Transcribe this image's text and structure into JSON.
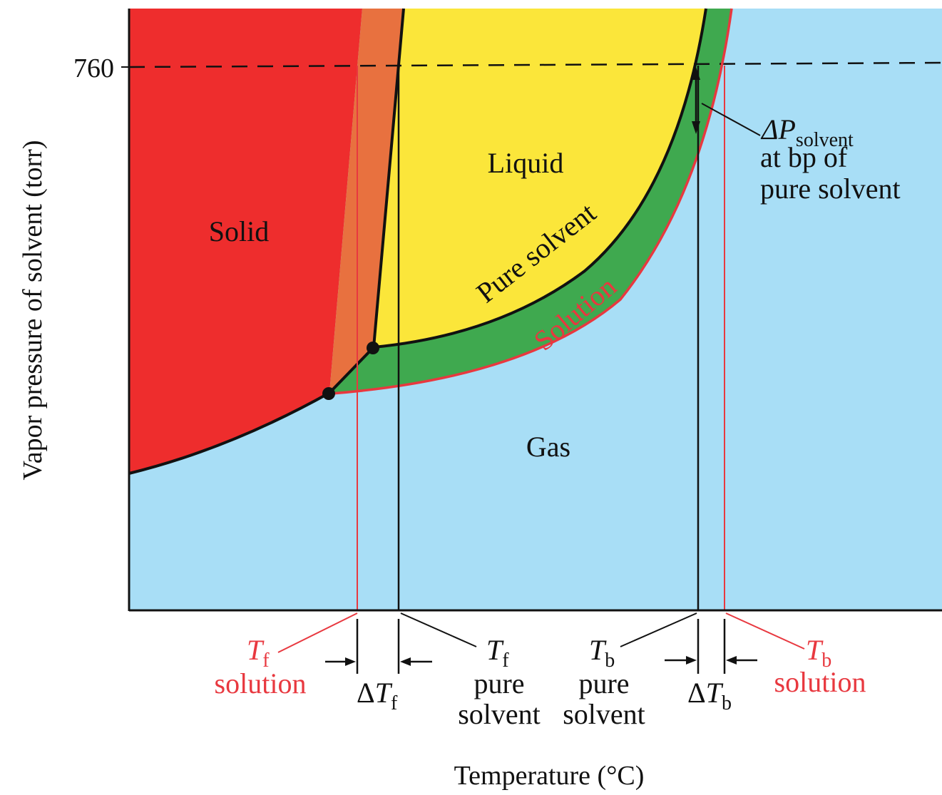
{
  "axes": {
    "y_label": "Vapor pressure of solvent (torr)",
    "x_label": "Temperature (°C)",
    "y_tick": "760"
  },
  "regions": {
    "solid": "Solid",
    "liquid": "Liquid",
    "gas": "Gas"
  },
  "curves": {
    "pure_solvent": "Pure solvent",
    "solution": "Solution"
  },
  "annotations": {
    "delta_p_symbol": "ΔP",
    "delta_p_subscript": "solvent",
    "delta_p_line2": "at bp of",
    "delta_p_line3": "pure solvent",
    "tf_solution_T": "T",
    "tf_solution_sub": "f",
    "tf_solution_word": "solution",
    "delta_tf_delta": "Δ",
    "delta_tf_T": "T",
    "delta_tf_sub": "f",
    "tf_pure_T": "T",
    "tf_pure_sub": "f",
    "tf_pure_line1": "pure",
    "tf_pure_line2": "solvent",
    "tb_pure_T": "T",
    "tb_pure_sub": "b",
    "tb_pure_line1": "pure",
    "tb_pure_line2": "solvent",
    "delta_tb_delta": "Δ",
    "delta_tb_T": "T",
    "delta_tb_sub": "b",
    "tb_solution_T": "T",
    "tb_solution_sub": "b",
    "tb_solution_word": "solution"
  },
  "colors": {
    "solid": "#ee2d2d",
    "orange_overlap": "#e8713f",
    "liquid": "#fbe63a",
    "green_band": "#3fa94f",
    "gas": "#a8def6",
    "solution_line": "#e8383f",
    "pure_line": "#111111"
  }
}
